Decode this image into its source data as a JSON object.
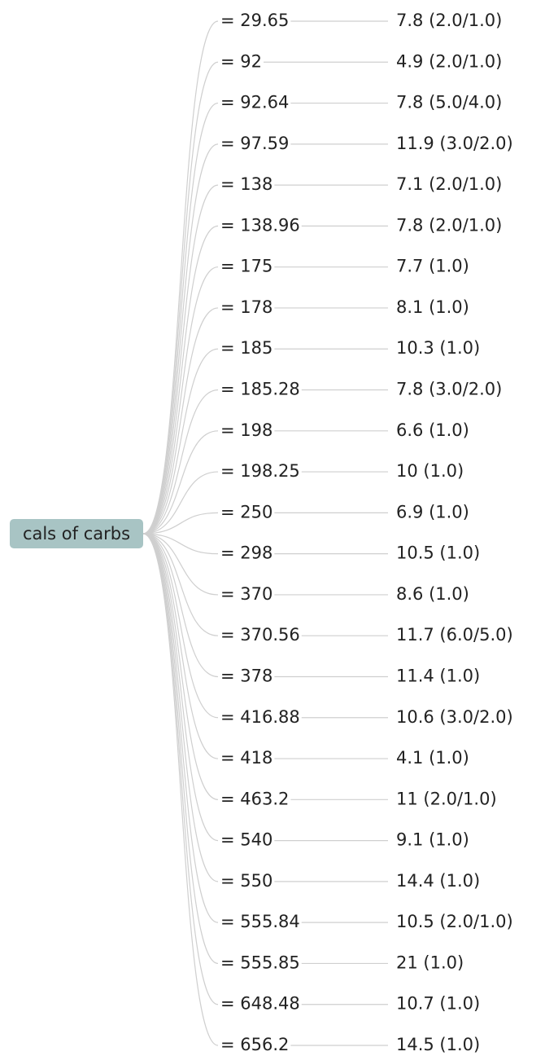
{
  "root": {
    "label": "cals of carbs"
  },
  "branches": [
    {
      "condition": "= 29.65",
      "leaf": "7.8 (2.0/1.0)"
    },
    {
      "condition": "= 92",
      "leaf": "4.9 (2.0/1.0)"
    },
    {
      "condition": "= 92.64",
      "leaf": "7.8 (5.0/4.0)"
    },
    {
      "condition": "= 97.59",
      "leaf": "11.9 (3.0/2.0)"
    },
    {
      "condition": "= 138",
      "leaf": "7.1 (2.0/1.0)"
    },
    {
      "condition": "= 138.96",
      "leaf": "7.8 (2.0/1.0)"
    },
    {
      "condition": "= 175",
      "leaf": "7.7 (1.0)"
    },
    {
      "condition": "= 178",
      "leaf": "8.1 (1.0)"
    },
    {
      "condition": "= 185",
      "leaf": "10.3 (1.0)"
    },
    {
      "condition": "= 185.28",
      "leaf": "7.8 (3.0/2.0)"
    },
    {
      "condition": "= 198",
      "leaf": "6.6 (1.0)"
    },
    {
      "condition": "= 198.25",
      "leaf": "10 (1.0)"
    },
    {
      "condition": "= 250",
      "leaf": "6.9 (1.0)"
    },
    {
      "condition": "= 298",
      "leaf": "10.5 (1.0)"
    },
    {
      "condition": "= 370",
      "leaf": "8.6 (1.0)"
    },
    {
      "condition": "= 370.56",
      "leaf": "11.7 (6.0/5.0)"
    },
    {
      "condition": "= 378",
      "leaf": "11.4 (1.0)"
    },
    {
      "condition": "= 416.88",
      "leaf": "10.6 (3.0/2.0)"
    },
    {
      "condition": "= 418",
      "leaf": "4.1 (1.0)"
    },
    {
      "condition": "= 463.2",
      "leaf": "11 (2.0/1.0)"
    },
    {
      "condition": "= 540",
      "leaf": "9.1 (1.0)"
    },
    {
      "condition": "= 550",
      "leaf": "14.4 (1.0)"
    },
    {
      "condition": "= 555.84",
      "leaf": "10.5 (2.0/1.0)"
    },
    {
      "condition": "= 555.85",
      "leaf": "21 (1.0)"
    },
    {
      "condition": "= 648.48",
      "leaf": "10.7 (1.0)"
    },
    {
      "condition": "= 656.2",
      "leaf": "14.5 (1.0)"
    }
  ]
}
